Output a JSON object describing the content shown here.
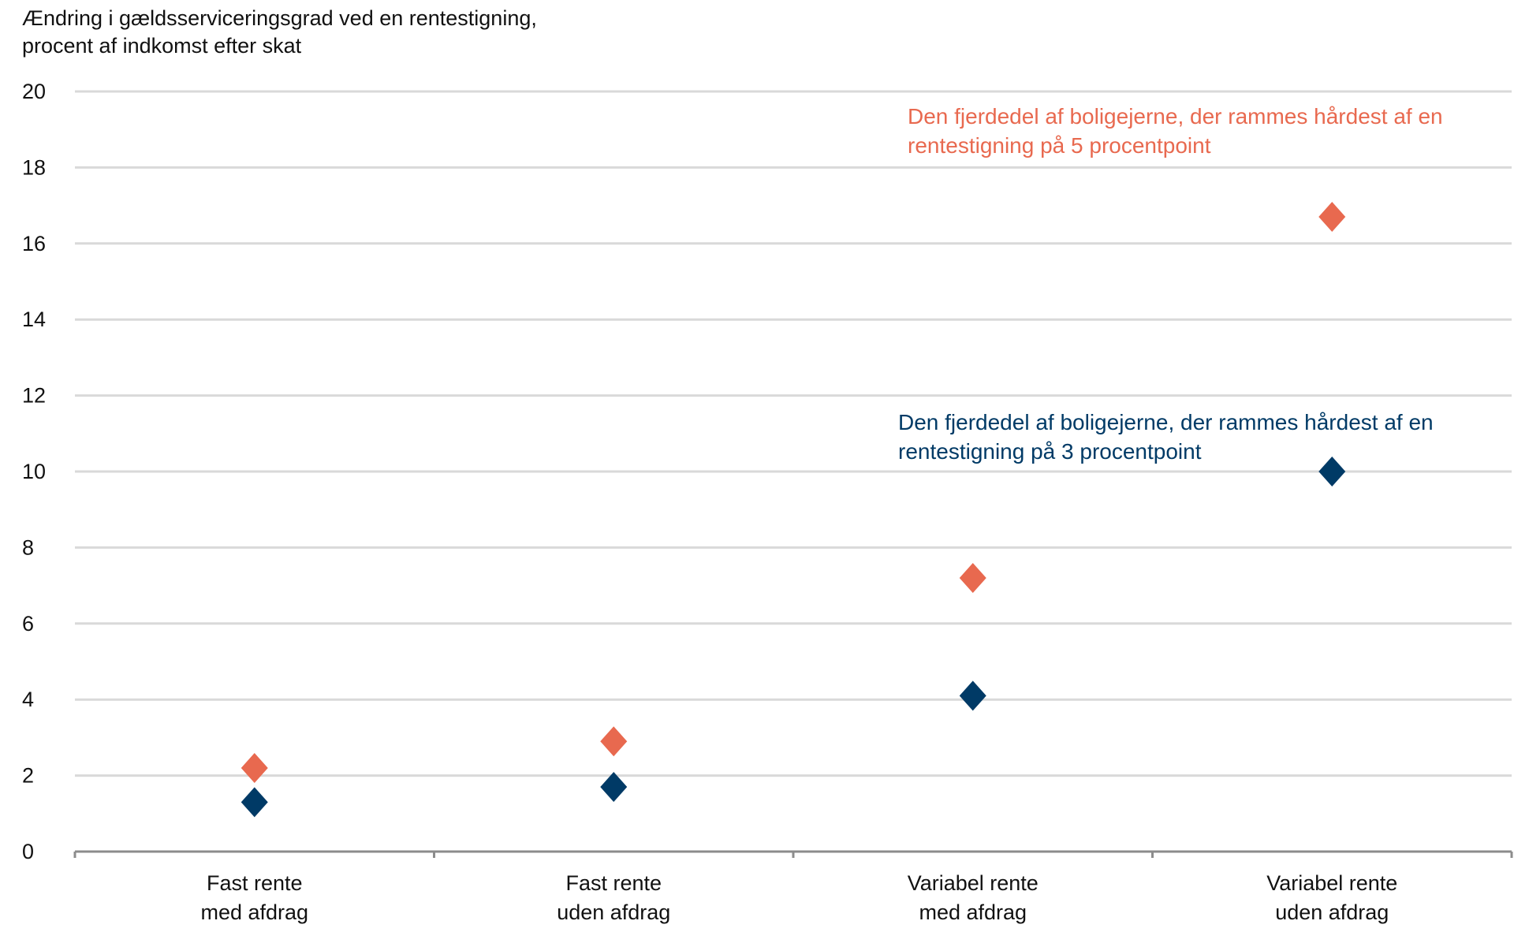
{
  "chart_data": {
    "type": "scatter",
    "title_lines": [
      "Ændring i gældsserviceringsgrad ved en rentestigning,",
      "procent af indkomst efter skat"
    ],
    "xlabel": "",
    "ylabel": "Ændring i gældsserviceringsgrad ved en rentestigning, procent af indkomst efter skat",
    "ylim": [
      0,
      20
    ],
    "yticks": [
      "0",
      "2",
      "4",
      "6",
      "8",
      "10",
      "12",
      "14",
      "16",
      "18",
      "20"
    ],
    "grid": true,
    "categories": [
      [
        "Fast rente",
        "med afdrag"
      ],
      [
        "Fast rente",
        "uden afdrag"
      ],
      [
        "Variabel rente",
        "med afdrag"
      ],
      [
        "Variabel rente",
        "uden afdrag"
      ]
    ],
    "series": [
      {
        "name": "Den fjerdedel af boligejerne, der rammes hårdest af en rentestigning på 5 procentpoint",
        "label_lines": [
          "Den fjerdedel af boligejerne, der rammes hårdest af en",
          "rentestigning på 5 procentpoint"
        ],
        "color": "#E8694F",
        "values": [
          2.2,
          2.9,
          7.2,
          16.7
        ]
      },
      {
        "name": "Den fjerdedel af boligejerne, der rammes hårdest af en rentestigning på 3 procentpoint",
        "label_lines": [
          "Den fjerdedel af boligejerne, der rammes hårdest af en",
          "rentestigning på 3 procentpoint"
        ],
        "color": "#003A66",
        "values": [
          1.3,
          1.7,
          4.1,
          10.0
        ]
      }
    ]
  }
}
